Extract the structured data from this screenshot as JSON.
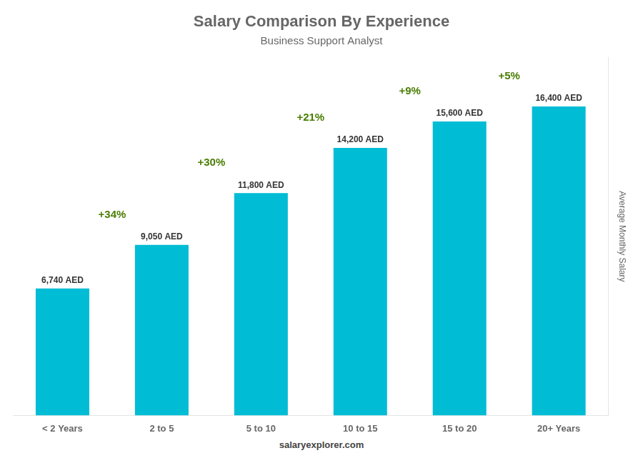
{
  "chart_data": {
    "type": "bar",
    "title": "Salary Comparison By Experience",
    "subtitle": "Business Support Analyst",
    "ylabel": "Average Monthly Salary",
    "categories": [
      "< 2 Years",
      "2 to 5",
      "5 to 10",
      "10 to 15",
      "15 to 20",
      "20+ Years"
    ],
    "values": [
      6740,
      9050,
      11800,
      14200,
      15600,
      16400
    ],
    "value_labels": [
      "6,740 AED",
      "9,050 AED",
      "11,800 AED",
      "14,200 AED",
      "15,600 AED",
      "16,400 AED"
    ],
    "data_labels": true,
    "annotations": [
      "+34%",
      "+30%",
      "+21%",
      "+9%",
      "+5%"
    ],
    "footer": "salaryexplorer.com",
    "color": "#00bcd4",
    "ylim": [
      0,
      19000
    ],
    "tick_labels": "x",
    "grid": false
  }
}
